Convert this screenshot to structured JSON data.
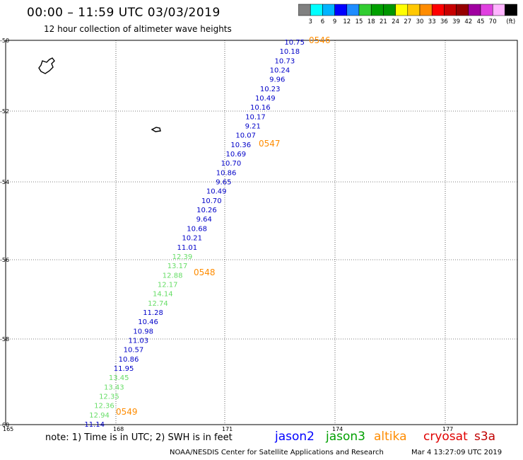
{
  "header": {
    "title": "00:00 – 11:59 UTC 03/03/2019",
    "subtitle": "12 hour collection of altimeter wave heights"
  },
  "scale": {
    "unit": "(ft)",
    "colors": [
      "#808080",
      "#00ffff",
      "#00b4ff",
      "#0000ff",
      "#1e8cff",
      "#32cd32",
      "#00a000",
      "#009600",
      "#ffff00",
      "#ffc800",
      "#ff8c00",
      "#ff0000",
      "#c80000",
      "#960000",
      "#a000a0",
      "#e040e0",
      "#ffb4ff",
      "#000000"
    ],
    "labels": [
      "3",
      "6",
      "9",
      "12",
      "15",
      "18",
      "21",
      "24",
      "27",
      "30",
      "33",
      "36",
      "39",
      "42",
      "45",
      "70"
    ]
  },
  "axes": {
    "lat_labels": [
      "-50",
      "-52",
      "-54",
      "-56",
      "-58",
      "-60"
    ],
    "lon_labels": [
      "165",
      "168",
      "171",
      "174",
      "177"
    ]
  },
  "passes": [
    {
      "label": "0546"
    },
    {
      "label": "0547"
    },
    {
      "label": "0548"
    },
    {
      "label": "0549"
    }
  ],
  "observations": [
    {
      "v": "10.75",
      "c": "#0000c8"
    },
    {
      "v": "10.18",
      "c": "#0000c8"
    },
    {
      "v": "10.73",
      "c": "#0000c8"
    },
    {
      "v": "10.24",
      "c": "#0000c8"
    },
    {
      "v": "9.96",
      "c": "#0000c8"
    },
    {
      "v": "10.23",
      "c": "#0000c8"
    },
    {
      "v": "10.49",
      "c": "#0000c8"
    },
    {
      "v": "10.16",
      "c": "#0000c8"
    },
    {
      "v": "10.17",
      "c": "#0000c8"
    },
    {
      "v": "9.21",
      "c": "#0000c8"
    },
    {
      "v": "10.07",
      "c": "#0000c8"
    },
    {
      "v": "10.36",
      "c": "#0000c8"
    },
    {
      "v": "10.69",
      "c": "#0000c8"
    },
    {
      "v": "10.70",
      "c": "#0000c8"
    },
    {
      "v": "10.86",
      "c": "#0000c8"
    },
    {
      "v": "9.65",
      "c": "#0000c8"
    },
    {
      "v": "10.49",
      "c": "#0000c8"
    },
    {
      "v": "10.70",
      "c": "#0000c8"
    },
    {
      "v": "10.26",
      "c": "#0000c8"
    },
    {
      "v": "9.64",
      "c": "#0000c8"
    },
    {
      "v": "10.68",
      "c": "#0000c8"
    },
    {
      "v": "10.21",
      "c": "#0000c8"
    },
    {
      "v": "11.01",
      "c": "#0000c8"
    },
    {
      "v": "12.39",
      "c": "#66dd66"
    },
    {
      "v": "13.17",
      "c": "#66dd66"
    },
    {
      "v": "12.88",
      "c": "#66dd66"
    },
    {
      "v": "12.17",
      "c": "#66dd66"
    },
    {
      "v": "14.14",
      "c": "#66dd66"
    },
    {
      "v": "12.74",
      "c": "#66dd66"
    },
    {
      "v": "11.28",
      "c": "#0000c8"
    },
    {
      "v": "10.46",
      "c": "#0000c8"
    },
    {
      "v": "10.98",
      "c": "#0000c8"
    },
    {
      "v": "11.03",
      "c": "#0000c8"
    },
    {
      "v": "10.57",
      "c": "#0000c8"
    },
    {
      "v": "10.86",
      "c": "#0000c8"
    },
    {
      "v": "11.95",
      "c": "#0000c8"
    },
    {
      "v": "13.45",
      "c": "#66dd66"
    },
    {
      "v": "13.43",
      "c": "#66dd66"
    },
    {
      "v": "12.35",
      "c": "#66dd66"
    },
    {
      "v": "12.36",
      "c": "#66dd66"
    },
    {
      "v": "12.94",
      "c": "#66dd66"
    },
    {
      "v": "11.14",
      "c": "#0000c8"
    }
  ],
  "footer": {
    "note": "note: 1) Time is in UTC; 2) SWH is in feet",
    "credit": "NOAA/NESDIS Center for Satellite Applications and Research",
    "timestamp": "Mar  4 13:27:09 UTC 2019"
  },
  "satellites": [
    {
      "name": "jason2",
      "color": "#0000ff"
    },
    {
      "name": "jason3",
      "color": "#00a000"
    },
    {
      "name": "altika",
      "color": "#ff8c00"
    },
    {
      "name": "cryosat",
      "color": "#e00000"
    },
    {
      "name": "s3a",
      "color": "#c00000"
    }
  ]
}
